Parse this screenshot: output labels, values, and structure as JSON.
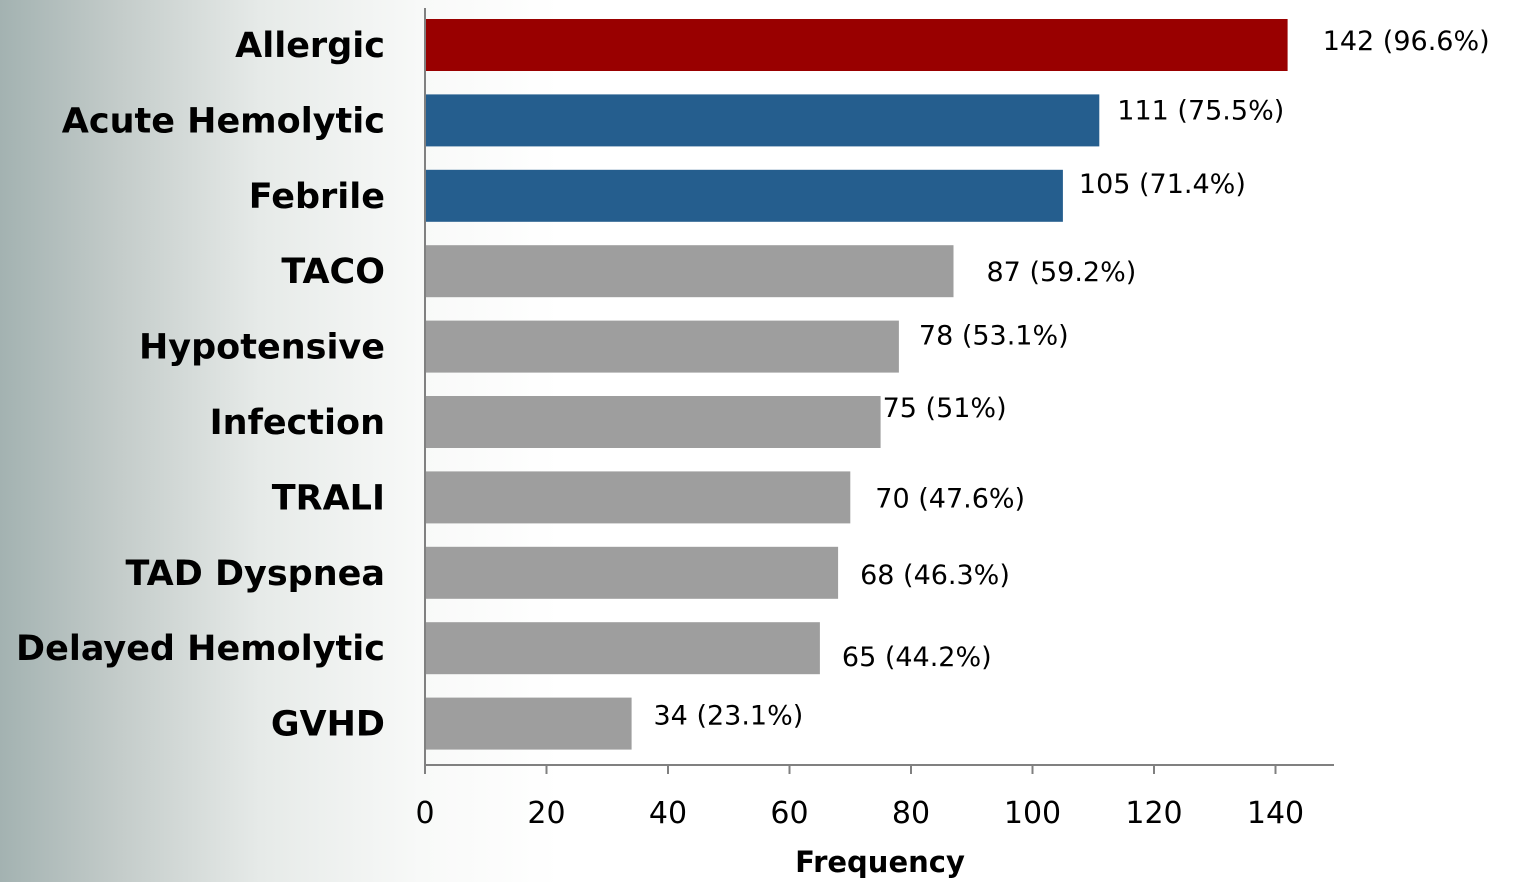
{
  "chart_data": {
    "type": "bar",
    "orientation": "horizontal",
    "categories": [
      "Allergic",
      "Acute Hemolytic",
      "Febrile",
      "TACO",
      "Hypotensive",
      "Infection",
      "TRALI",
      "TAD Dyspnea",
      "Delayed Hemolytic",
      "GVHD"
    ],
    "values": [
      142,
      111,
      105,
      87,
      78,
      75,
      70,
      68,
      65,
      34
    ],
    "data_labels": [
      "142 (96.6%)",
      "111 (75.5%)",
      "105 (71.4%)",
      "87 (59.2%)",
      "78 (53.1%)",
      "75 (51%)",
      "70 (47.6%)",
      "68 (46.3%)",
      "65 (44.2%)",
      "34 (23.1%)"
    ],
    "bar_colors": [
      "#990000",
      "#255e8e",
      "#255e8e",
      "#9e9e9e",
      "#9e9e9e",
      "#9e9e9e",
      "#9e9e9e",
      "#9e9e9e",
      "#9e9e9e",
      "#9e9e9e"
    ],
    "title": "",
    "xlabel": "Frequency",
    "ylabel": "",
    "xlim": [
      0,
      150
    ],
    "x_ticks": [
      0,
      20,
      40,
      60,
      80,
      100,
      120,
      140
    ],
    "x_tick_labels": [
      "0",
      "20",
      "40",
      "60",
      "80",
      "100",
      "120",
      "140"
    ],
    "grid": false,
    "legend": "none"
  }
}
